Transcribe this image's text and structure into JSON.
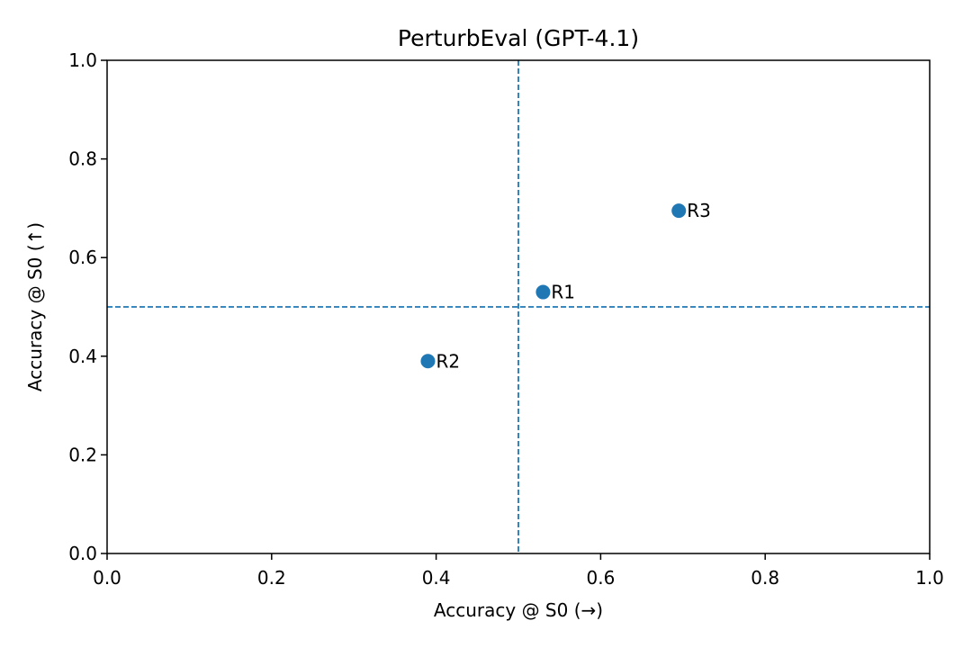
{
  "chart_data": {
    "type": "scatter",
    "title": "PerturbEval (GPT-4.1)",
    "xlabel": "Accuracy @ S0 (→)",
    "ylabel": "Accuracy @ S0 (↑)",
    "xlim": [
      0.0,
      1.0
    ],
    "ylim": [
      0.0,
      1.0
    ],
    "xticks": [
      "0.0",
      "0.2",
      "0.4",
      "0.6",
      "0.8",
      "1.0"
    ],
    "yticks": [
      "0.0",
      "0.2",
      "0.4",
      "0.6",
      "0.8",
      "1.0"
    ],
    "grid": false,
    "reference_lines": {
      "x": 0.5,
      "y": 0.5,
      "style": "dashed"
    },
    "marker_color": "#1f77b4",
    "points": [
      {
        "label": "R1",
        "x": 0.53,
        "y": 0.53
      },
      {
        "label": "R2",
        "x": 0.39,
        "y": 0.39
      },
      {
        "label": "R3",
        "x": 0.695,
        "y": 0.695
      }
    ]
  }
}
